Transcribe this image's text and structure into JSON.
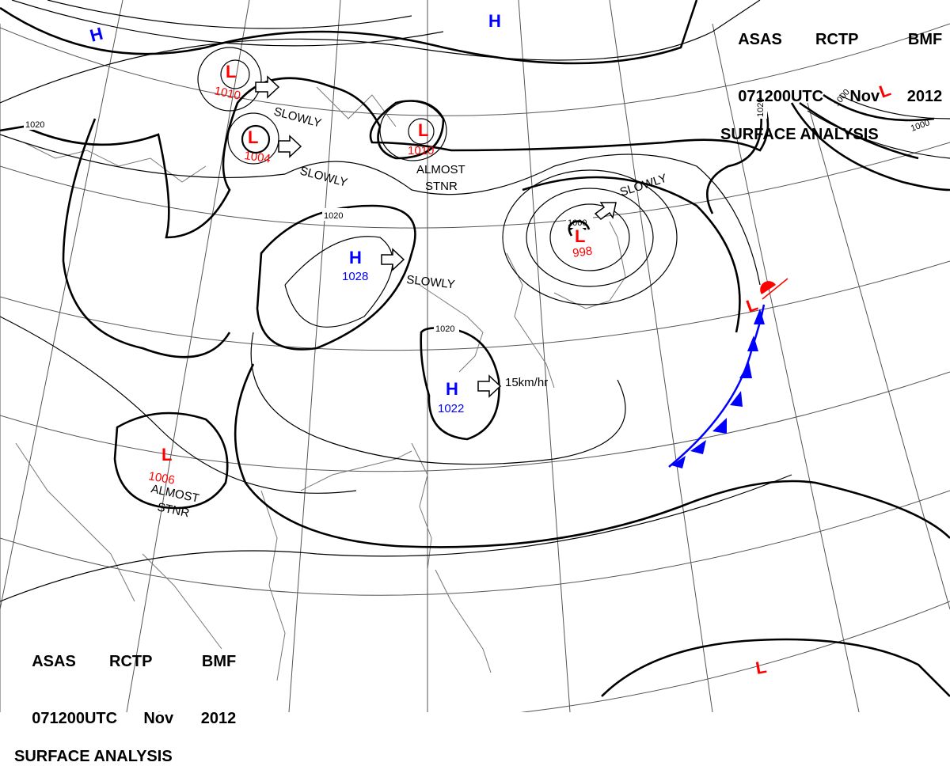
{
  "header_top": {
    "line1": [
      "ASAS",
      "RCTP",
      "BMF"
    ],
    "line2": [
      "071200UTC",
      "Nov",
      "2012"
    ],
    "line3": "SURFACE ANALYSIS"
  },
  "header_bottom": {
    "line1": [
      "ASAS",
      "RCTP",
      "BMF"
    ],
    "line2": [
      "071200UTC",
      "Nov",
      "2012"
    ],
    "line3": "SURFACE ANALYSIS"
  },
  "colors": {
    "low": "#ff0000",
    "high": "#0000ff",
    "isobar": "#000000",
    "graticule": "#555555",
    "coast": "#777777"
  },
  "pressure_systems": [
    {
      "id": "low-1",
      "type": "L",
      "pressure": "1010",
      "motion": "SLOWLY"
    },
    {
      "id": "low-2",
      "type": "L",
      "pressure": "1004",
      "motion": "SLOWLY"
    },
    {
      "id": "low-3",
      "type": "L",
      "pressure": "1010",
      "motion": "ALMOST STNR"
    },
    {
      "id": "low-4",
      "type": "L",
      "pressure": "998",
      "motion": "SLOWLY"
    },
    {
      "id": "low-5",
      "type": "L",
      "pressure": "1006",
      "motion": "ALMOST STNR"
    },
    {
      "id": "low-6",
      "type": "L",
      "pressure": "",
      "motion": ""
    },
    {
      "id": "low-7",
      "type": "L",
      "pressure": "",
      "motion": ""
    },
    {
      "id": "low-8",
      "type": "L",
      "pressure": "",
      "motion": ""
    },
    {
      "id": "high-1",
      "type": "H",
      "pressure": "1028",
      "motion": "SLOWLY"
    },
    {
      "id": "high-2",
      "type": "H",
      "pressure": "1022",
      "motion": "15km/hr"
    },
    {
      "id": "high-3",
      "type": "H",
      "pressure": "",
      "motion": ""
    },
    {
      "id": "high-4",
      "type": "H",
      "pressure": "",
      "motion": ""
    }
  ],
  "motion_labels": {
    "slowly_1": "SLOWLY",
    "slowly_2": "SLOWLY",
    "slowly_3": "SLOWLY",
    "slowly_4": "SLOWLY",
    "almost_1": "ALMOST",
    "stnr_1": "STNR",
    "almost_2": "ALMOST",
    "stnr_2": "STNR",
    "speed_1": "15km/hr"
  },
  "isobar_labels": {
    "l1020_a": "1020",
    "l1020_b": "1020",
    "l1020_c": "1020",
    "l1020_d": "1020",
    "l1000_a": "1000",
    "l1000_b": "1000",
    "l1000_c": "1000"
  },
  "fronts": [
    {
      "type": "cold",
      "color": "#0000ff"
    },
    {
      "type": "warm",
      "color": "#ff0000"
    }
  ]
}
